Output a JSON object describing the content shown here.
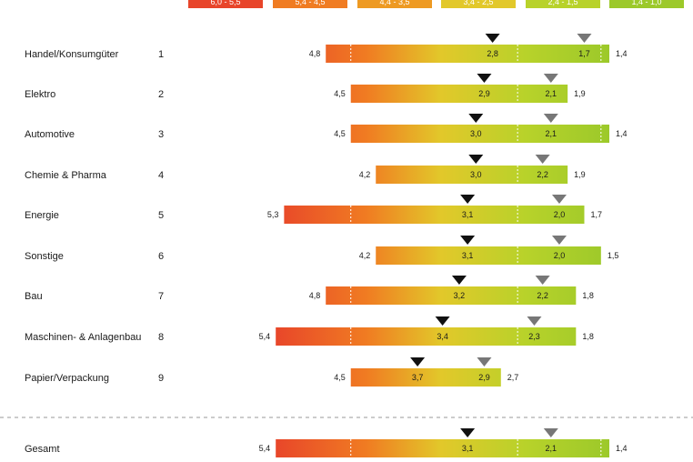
{
  "colors": {
    "scale": [
      "#e8452a",
      "#f07c22",
      "#ee9a22",
      "#e2c82a",
      "#b8d22a",
      "#9cc92a"
    ],
    "marker_primary": "#111111",
    "marker_secondary": "#777777"
  },
  "chart_data": {
    "type": "bar",
    "orientation": "horizontal",
    "legend": [
      {
        "label": "6,0 - 5,5",
        "color": "#e8452a"
      },
      {
        "label": "5,4 - 4,5",
        "color": "#f07c22"
      },
      {
        "label": "4,4 - 3,5",
        "color": "#ee9a22"
      },
      {
        "label": "3,4 - 2,5",
        "color": "#e2c82a"
      },
      {
        "label": "2,4 - 1,5",
        "color": "#b8d22a"
      },
      {
        "label": "1,4 - 1,0",
        "color": "#9cc92a"
      }
    ],
    "rows": [
      {
        "name": "Handel/Konsumgüter",
        "rank": "1",
        "max": 4.8,
        "min": 1.4,
        "marker1": 2.8,
        "marker2": 1.7,
        "max_label": "4,8",
        "min_label": "1,4",
        "marker1_label": "2,8",
        "marker2_label": "1,7"
      },
      {
        "name": "Elektro",
        "rank": "2",
        "max": 4.5,
        "min": 1.9,
        "marker1": 2.9,
        "marker2": 2.1,
        "max_label": "4,5",
        "min_label": "1,9",
        "marker1_label": "2,9",
        "marker2_label": "2,1"
      },
      {
        "name": "Automotive",
        "rank": "3",
        "max": 4.5,
        "min": 1.4,
        "marker1": 3.0,
        "marker2": 2.1,
        "max_label": "4,5",
        "min_label": "1,4",
        "marker1_label": "3,0",
        "marker2_label": "2,1"
      },
      {
        "name": "Chemie & Pharma",
        "rank": "4",
        "max": 4.2,
        "min": 1.9,
        "marker1": 3.0,
        "marker2": 2.2,
        "max_label": "4,2",
        "min_label": "1,9",
        "marker1_label": "3,0",
        "marker2_label": "2,2"
      },
      {
        "name": "Energie",
        "rank": "5",
        "max": 5.3,
        "min": 1.7,
        "marker1": 3.1,
        "marker2": 2.0,
        "max_label": "5,3",
        "min_label": "1,7",
        "marker1_label": "3,1",
        "marker2_label": "2,0"
      },
      {
        "name": "Sonstige",
        "rank": "6",
        "max": 4.2,
        "min": 1.5,
        "marker1": 3.1,
        "marker2": 2.0,
        "max_label": "4,2",
        "min_label": "1,5",
        "marker1_label": "3,1",
        "marker2_label": "2,0"
      },
      {
        "name": "Bau",
        "rank": "7",
        "max": 4.8,
        "min": 1.8,
        "marker1": 3.2,
        "marker2": 2.2,
        "max_label": "4,8",
        "min_label": "1,8",
        "marker1_label": "3,2",
        "marker2_label": "2,2"
      },
      {
        "name": "Maschinen- & Anlagenbau",
        "rank": "8",
        "max": 5.4,
        "min": 1.8,
        "marker1": 3.4,
        "marker2": 2.3,
        "max_label": "5,4",
        "min_label": "1,8",
        "marker1_label": "3,4",
        "marker2_label": "2,3"
      },
      {
        "name": "Papier/Verpackung",
        "rank": "9",
        "max": 4.5,
        "min": 2.7,
        "marker1": 3.7,
        "marker2": 2.9,
        "max_label": "4,5",
        "min_label": "2,7",
        "marker1_label": "3,7",
        "marker2_label": "2,9"
      }
    ],
    "total": {
      "name": "Gesamt",
      "rank": "",
      "max": 5.4,
      "min": 1.4,
      "marker1": 3.1,
      "marker2": 2.1,
      "max_label": "5,4",
      "min_label": "1,4",
      "marker1_label": "3,1",
      "marker2_label": "2,1"
    },
    "grid": "dashed white lines at 2.5 and 1.5 inside bars",
    "separator": "dashed line above total row"
  }
}
